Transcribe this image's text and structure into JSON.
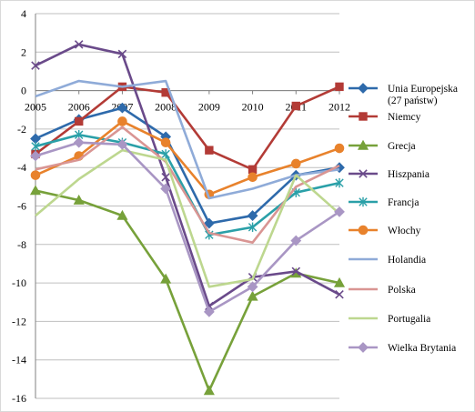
{
  "chart_data": {
    "type": "line",
    "title": "",
    "xlabel": "",
    "ylabel": "",
    "x": [
      "2005",
      "2006",
      "2007",
      "2008",
      "2009",
      "2010",
      "2011",
      "2012"
    ],
    "ylim": [
      -16,
      4
    ],
    "yticks": [
      4,
      2,
      0,
      -2,
      -4,
      -6,
      -8,
      -10,
      -12,
      -14,
      -16
    ],
    "grid": "horizontal major gridlines",
    "legend_position": "right",
    "series": [
      {
        "name_lines": [
          "Unia Europejska",
          "(27 państw)"
        ],
        "color": "#2e6aab",
        "marker": "diamond",
        "values": [
          -2.5,
          -1.5,
          -0.9,
          -2.4,
          -6.9,
          -6.5,
          -4.4,
          -4.0
        ]
      },
      {
        "name_lines": [
          "Niemcy"
        ],
        "color": "#b33b36",
        "marker": "square",
        "values": [
          -3.3,
          -1.6,
          0.2,
          -0.1,
          -3.1,
          -4.1,
          -0.8,
          0.2
        ]
      },
      {
        "name_lines": [
          "Grecja"
        ],
        "color": "#77a13a",
        "marker": "triangle",
        "values": [
          -5.2,
          -5.7,
          -6.5,
          -9.8,
          -15.6,
          -10.7,
          -9.5,
          -10.0
        ]
      },
      {
        "name_lines": [
          "Hiszpania"
        ],
        "color": "#6a4a8a",
        "marker": "x",
        "values": [
          1.3,
          2.4,
          1.9,
          -4.5,
          -11.2,
          -9.7,
          -9.4,
          -10.6
        ]
      },
      {
        "name_lines": [
          "Francja"
        ],
        "color": "#2aa0a8",
        "marker": "star",
        "values": [
          -2.9,
          -2.3,
          -2.7,
          -3.3,
          -7.5,
          -7.1,
          -5.3,
          -4.8
        ]
      },
      {
        "name_lines": [
          "Włochy"
        ],
        "color": "#e8822c",
        "marker": "circle",
        "values": [
          -4.4,
          -3.4,
          -1.6,
          -2.7,
          -5.4,
          -4.5,
          -3.8,
          -3.0
        ]
      },
      {
        "name_lines": [
          "Holandia"
        ],
        "color": "#8fabd8",
        "marker": "none",
        "values": [
          -0.3,
          0.5,
          0.2,
          0.5,
          -5.6,
          -5.1,
          -4.4,
          -4.1
        ]
      },
      {
        "name_lines": [
          "Polska"
        ],
        "color": "#d99593",
        "marker": "none",
        "values": [
          -4.1,
          -3.6,
          -1.9,
          -3.7,
          -7.4,
          -7.9,
          -5.0,
          -3.9
        ]
      },
      {
        "name_lines": [
          "Portugalia"
        ],
        "color": "#bdd78f",
        "marker": "none",
        "values": [
          -6.5,
          -4.6,
          -3.1,
          -3.6,
          -10.2,
          -9.8,
          -4.4,
          -6.4
        ]
      },
      {
        "name_lines": [
          "Wielka Brytania"
        ],
        "color": "#a996c4",
        "marker": "diamond",
        "values": [
          -3.4,
          -2.7,
          -2.8,
          -5.1,
          -11.5,
          -10.2,
          -7.8,
          -6.3
        ]
      }
    ]
  }
}
